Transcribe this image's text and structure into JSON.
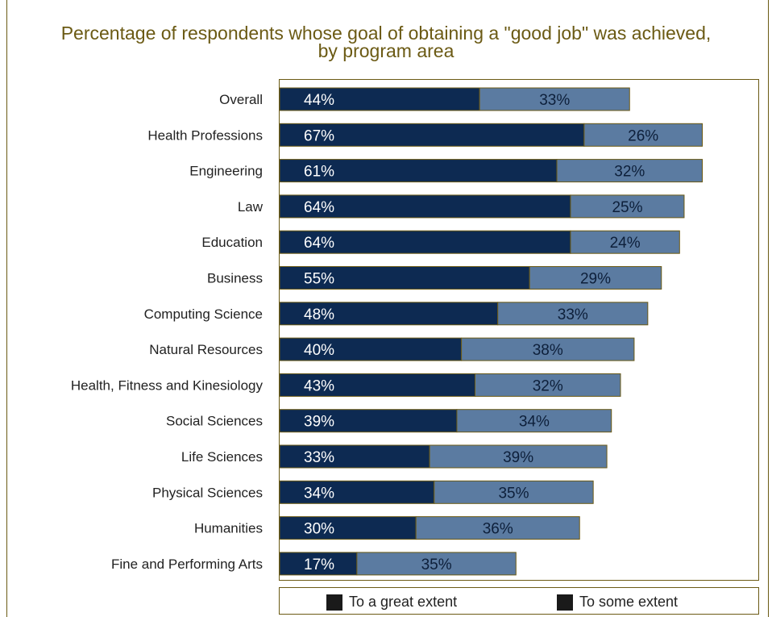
{
  "chart_data": {
    "type": "bar",
    "orientation": "horizontal",
    "stacked": true,
    "title": "Percentage of respondents whose goal of obtaining a \"good job\" was achieved,",
    "subtitle": "by program area",
    "categories": [
      "Overall",
      "Health Professions",
      "Engineering",
      "Law",
      "Education",
      "Business",
      "Computing Science",
      "Natural Resources",
      "Health, Fitness and Kinesiology",
      "Social Sciences",
      "Life Sciences",
      "Physical Sciences",
      "Humanities",
      "Fine and Performing Arts"
    ],
    "series": [
      {
        "name": "To a great extent",
        "values": [
          44,
          67,
          61,
          64,
          64,
          55,
          48,
          40,
          43,
          39,
          33,
          34,
          30,
          17
        ],
        "labels": [
          "44%",
          "67%",
          "61%",
          "64%",
          "64%",
          "55%",
          "48%",
          "40%",
          "43%",
          "39%",
          "33%",
          "34%",
          "30%",
          "17%"
        ],
        "color": "#0d2a52"
      },
      {
        "name": "To some extent",
        "values": [
          33,
          26,
          32,
          25,
          24,
          29,
          33,
          38,
          32,
          34,
          39,
          35,
          36,
          35
        ],
        "labels": [
          "33%",
          "26%",
          "32%",
          "25%",
          "24%",
          "29%",
          "33%",
          "38%",
          "32%",
          "34%",
          "39%",
          "35%",
          "36%",
          "35%"
        ],
        "color": "#5b7ba1"
      }
    ],
    "xlim": [
      0,
      100
    ],
    "grid": false,
    "legend_placement": "bottom",
    "legend_swatch_color": "#1a1a1a"
  }
}
